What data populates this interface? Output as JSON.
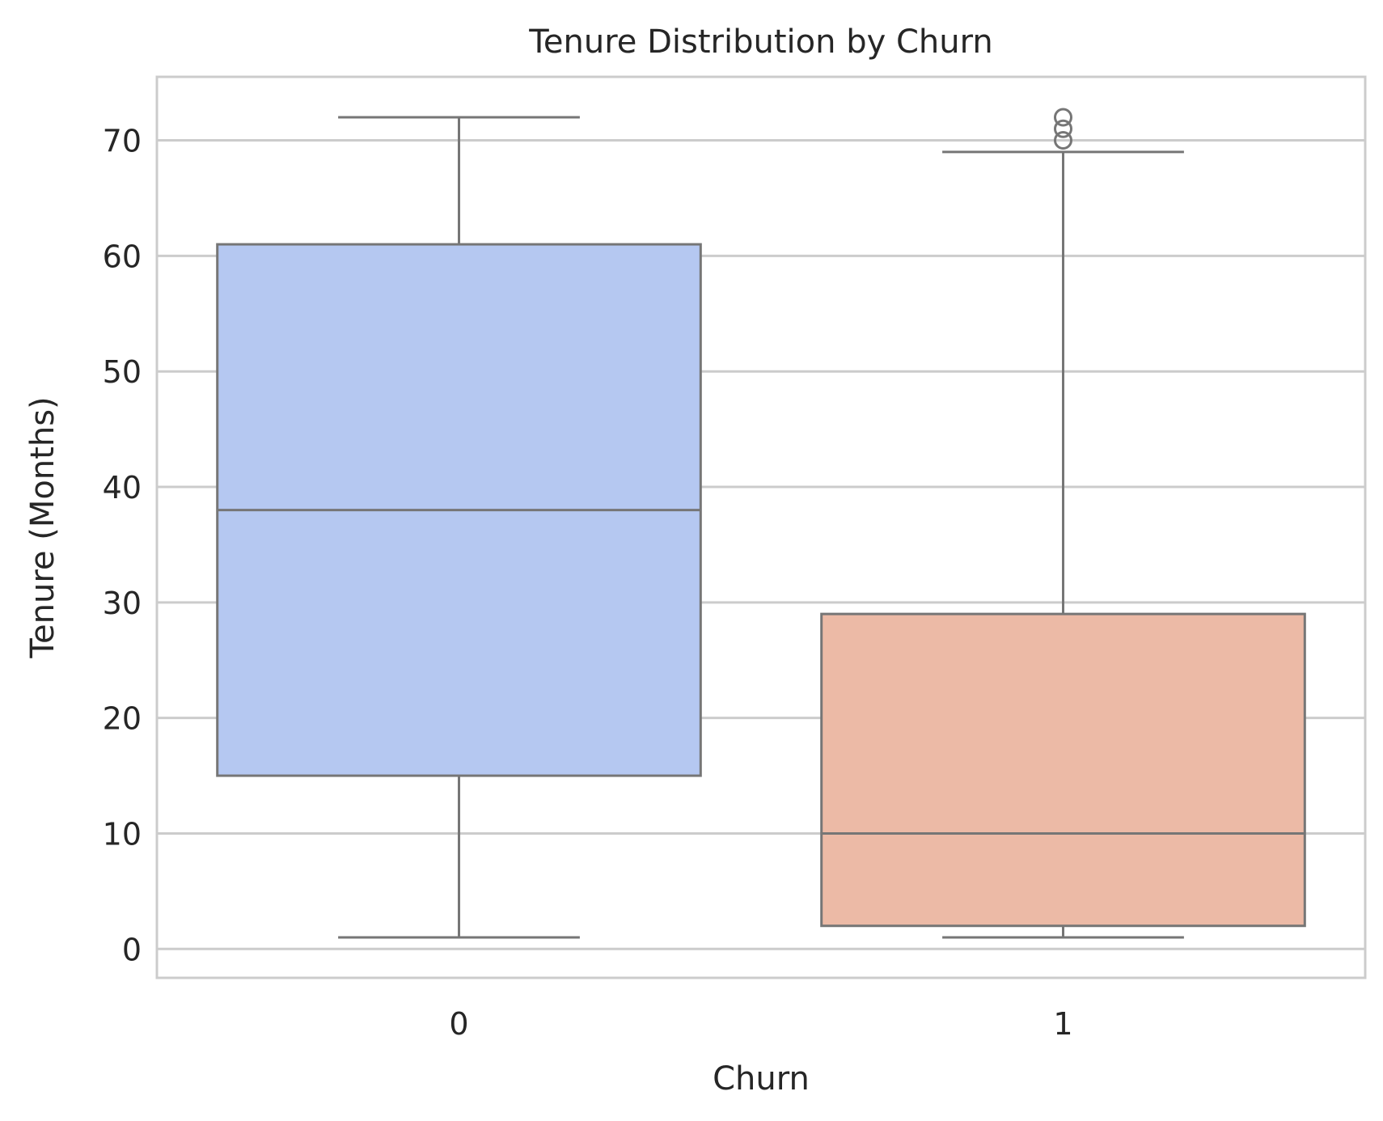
{
  "chart_data": {
    "type": "boxplot",
    "title": "Tenure Distribution by Churn",
    "xlabel": "Churn",
    "ylabel": "Tenure (Months)",
    "categories": [
      "0",
      "1"
    ],
    "ylim": [
      -2.5,
      75.5
    ],
    "yticks": [
      0,
      10,
      20,
      30,
      40,
      50,
      60,
      70
    ],
    "grid": true,
    "boxes": [
      {
        "category": "0",
        "whisker_low": 1,
        "q1": 15,
        "median": 38,
        "q3": 61,
        "whisker_high": 72,
        "outliers": [],
        "color": "#b5c8f1"
      },
      {
        "category": "1",
        "whisker_low": 1,
        "q1": 2,
        "median": 10,
        "q3": 29,
        "whisker_high": 69,
        "outliers": [
          70,
          71,
          72
        ],
        "color": "#ecbaa6"
      }
    ],
    "colors": {
      "line": "#767676",
      "grid": "#cccccc",
      "frame": "#cccccc"
    }
  }
}
